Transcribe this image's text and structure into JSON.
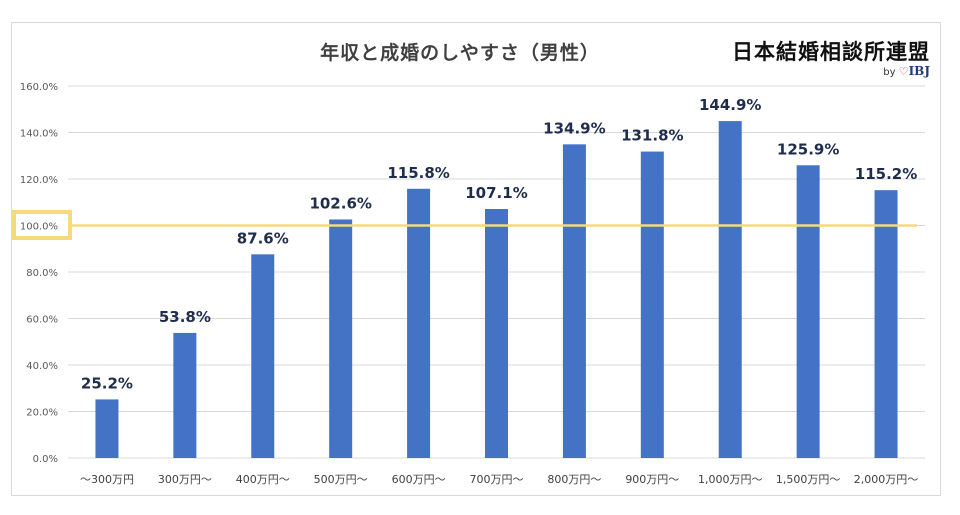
{
  "header": {
    "title": "年収と成婚のしやすさ（男性）",
    "brand": "日本結婚相談所連盟",
    "brand_by": "by",
    "brand_logo": "IBJ",
    "brand_logo_icon": "heart-icon"
  },
  "colors": {
    "bar": "#4472c4",
    "reference_line": "#f7d87a",
    "grid": "#d9d9d9",
    "value_label": "#1f2d4d"
  },
  "chart_data": {
    "type": "bar",
    "title": "年収と成婚のしやすさ（男性）",
    "xlabel": "",
    "ylabel": "",
    "categories": [
      "～300万円",
      "300万円～",
      "400万円～",
      "500万円～",
      "600万円～",
      "700万円～",
      "800万円～",
      "900万円～",
      "1,000万円～",
      "1,500万円～",
      "2,000万円～"
    ],
    "values": [
      25.2,
      53.8,
      87.6,
      102.6,
      115.8,
      107.1,
      134.9,
      131.8,
      144.9,
      125.9,
      115.2
    ],
    "value_labels": [
      "25.2%",
      "53.8%",
      "87.6%",
      "102.6%",
      "115.8%",
      "107.1%",
      "134.9%",
      "131.8%",
      "144.9%",
      "125.9%",
      "115.2%"
    ],
    "ylim": [
      0,
      160
    ],
    "yticks": [
      0,
      20,
      40,
      60,
      80,
      100,
      120,
      140,
      160
    ],
    "ytick_labels": [
      "0.0%",
      "20.0%",
      "40.0%",
      "60.0%",
      "80.0%",
      "100.0%",
      "120.0%",
      "140.0%",
      "160.0%"
    ],
    "reference_line": 100,
    "highlighted_tick": "100.0%",
    "grid": true,
    "legend": "none"
  }
}
